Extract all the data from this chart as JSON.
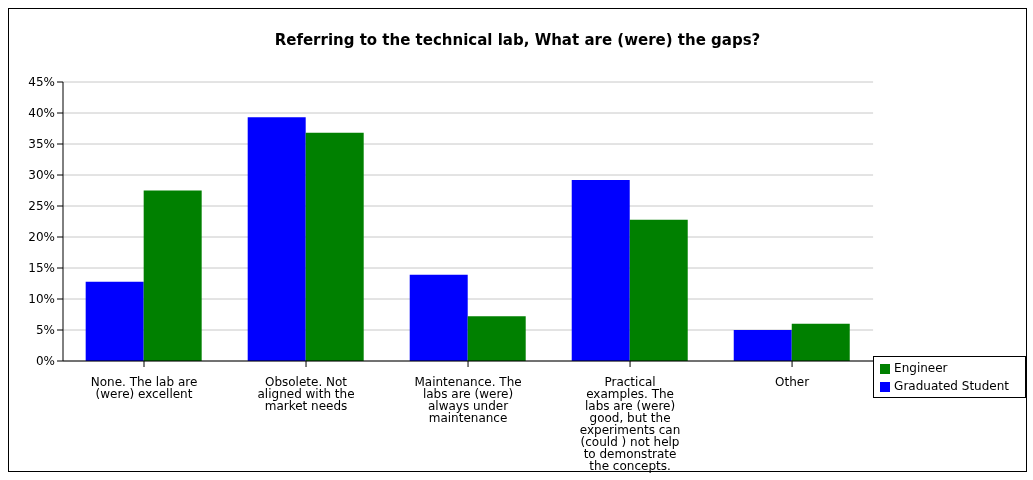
{
  "chart_data": {
    "type": "bar",
    "title": "Referring to the technical lab, What are (were) the gaps?",
    "categories": [
      "None. The lab are (were) excellent",
      "Obsolete. Not aligned with  the market needs",
      "Maintenance. The labs are (were) always under maintenance",
      "Practical examples. The labs are (were) good, but the experiments can (could ) not help to demonstrate the concepts.",
      "Other"
    ],
    "series": [
      {
        "name": "Graduated Student",
        "color": "#0000ff",
        "values": [
          12.8,
          39.3,
          13.9,
          29.2,
          5.0
        ]
      },
      {
        "name": "Engineer",
        "color": "#008000",
        "values": [
          27.5,
          36.8,
          7.2,
          22.8,
          6.0
        ]
      }
    ],
    "ylim": [
      0,
      45
    ],
    "yticks": [
      {
        "value": 0,
        "label": "0%"
      },
      {
        "value": 5,
        "label": "5%"
      },
      {
        "value": 10,
        "label": "10%"
      },
      {
        "value": 15,
        "label": "15%"
      },
      {
        "value": 20,
        "label": "20%"
      },
      {
        "value": 25,
        "label": "25%"
      },
      {
        "value": 30,
        "label": "30%"
      },
      {
        "value": 35,
        "label": "35%"
      },
      {
        "value": 40,
        "label": "40%"
      },
      {
        "value": 45,
        "label": "45%"
      }
    ],
    "grid": "y",
    "legend": "right"
  }
}
